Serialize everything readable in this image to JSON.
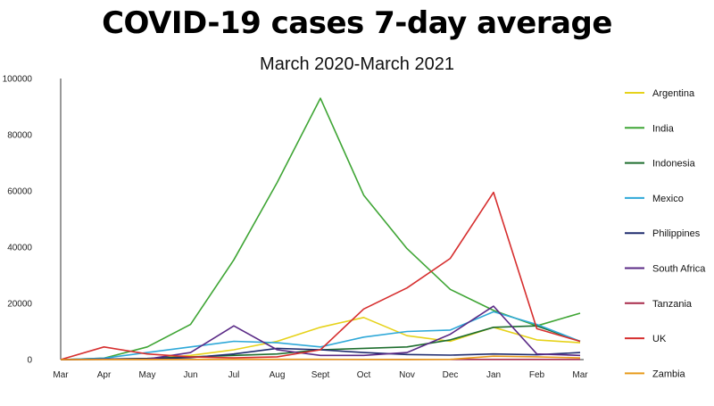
{
  "chart_data": {
    "type": "line",
    "title": "COVID-19 cases 7-day average",
    "subtitle": "March 2020-March 2021",
    "xlabel": "",
    "ylabel": "",
    "ylim": [
      0,
      100000
    ],
    "yticks": [
      "0",
      "20000",
      "40000",
      "60000",
      "80000",
      "100000"
    ],
    "ytick_values": [
      0,
      20000,
      40000,
      60000,
      80000,
      100000
    ],
    "categories": [
      "Mar",
      "Apr",
      "May",
      "Jun",
      "Jul",
      "Aug",
      "Sept",
      "Oct",
      "Nov",
      "Dec",
      "Jan",
      "Feb",
      "Mar"
    ],
    "grid": false,
    "legend_position": "right",
    "series": [
      {
        "name": "Argentina",
        "color": "#e6d21a",
        "values": [
          0,
          100,
          300,
          1500,
          3500,
          6500,
          11500,
          15000,
          8500,
          6500,
          11500,
          7000,
          6000
        ]
      },
      {
        "name": "India",
        "color": "#3fa535",
        "values": [
          0,
          500,
          4500,
          12500,
          35500,
          63000,
          93000,
          58500,
          39500,
          25000,
          17500,
          12000,
          16500
        ]
      },
      {
        "name": "Indonesia",
        "color": "#1e6e2e",
        "values": [
          0,
          200,
          400,
          1000,
          1500,
          2000,
          3500,
          4000,
          4500,
          7000,
          11500,
          12000,
          6500
        ]
      },
      {
        "name": "Mexico",
        "color": "#2ea8d8",
        "values": [
          0,
          500,
          2500,
          4500,
          6500,
          6000,
          4500,
          8000,
          10000,
          10500,
          17000,
          12500,
          6500
        ]
      },
      {
        "name": "Philippines",
        "color": "#1f2b6e",
        "values": [
          0,
          200,
          300,
          700,
          2000,
          4000,
          3500,
          2500,
          1800,
          1600,
          2000,
          1700,
          2500
        ]
      },
      {
        "name": "South Africa",
        "color": "#5a2a86",
        "values": [
          0,
          100,
          200,
          2500,
          12000,
          3500,
          1500,
          1500,
          2500,
          9000,
          19000,
          2000,
          1500
        ]
      },
      {
        "name": "Tanzania",
        "color": "#a82a4a",
        "values": [
          0,
          50,
          50,
          50,
          50,
          50,
          50,
          50,
          50,
          50,
          50,
          50,
          50
        ]
      },
      {
        "name": "UK",
        "color": "#d62e2e",
        "values": [
          0,
          4500,
          2000,
          1000,
          600,
          1000,
          3500,
          18000,
          25500,
          36000,
          59500,
          11000,
          6500
        ]
      },
      {
        "name": "Zambia",
        "color": "#e89a1a",
        "values": [
          0,
          10,
          20,
          50,
          100,
          100,
          100,
          60,
          40,
          100,
          1200,
          1000,
          600
        ]
      }
    ]
  }
}
